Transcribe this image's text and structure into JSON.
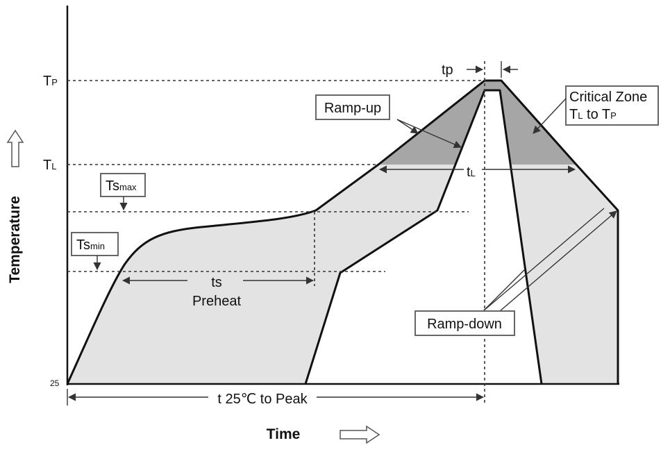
{
  "axis_labels": {
    "y": "Temperature",
    "x": "Time",
    "origin": "25"
  },
  "levels": {
    "tp": {
      "base": "T",
      "sub": "P"
    },
    "tl": {
      "base": "T",
      "sub": "L"
    },
    "ts_max": {
      "base": "Ts",
      "sub": "max"
    },
    "ts_min": {
      "base": "Ts",
      "sub": "min"
    }
  },
  "annotations": {
    "tp_width": "tp",
    "tl_time": {
      "base": "t",
      "sub": "L"
    },
    "ramp_up": "Ramp-up",
    "critical_zone": {
      "line1": "Critical Zone",
      "line2_parts": [
        "T",
        "L",
        " to T",
        "P"
      ]
    },
    "ts": "ts",
    "preheat": "Preheat",
    "ramp_down": "Ramp-down",
    "time_to_peak": "t 25℃ to Peak"
  }
}
